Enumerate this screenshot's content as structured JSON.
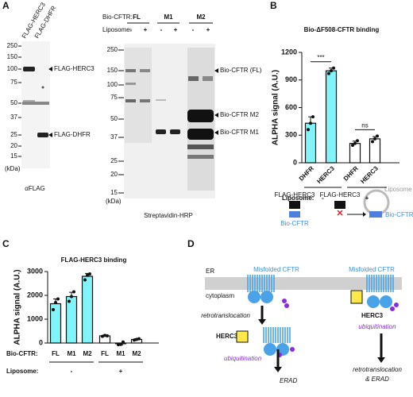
{
  "panel_labels": [
    "A",
    "B",
    "C",
    "D"
  ],
  "blot_left": {
    "lanes": [
      "FLAG-HERC3",
      "FLAG-DHFR"
    ],
    "markers": [
      250,
      150,
      100,
      75,
      50,
      37,
      25,
      20,
      15
    ],
    "marker_unit": "(kDa)",
    "bands": [
      "FLAG-HERC3",
      "FLAG-DHFR"
    ],
    "caption": "αFLAG"
  },
  "blot_right": {
    "row1_label": "Bio-CFTR:",
    "constructs": [
      "FL",
      "M1",
      "M2"
    ],
    "row2_label": "Liposome:",
    "liposome": [
      "-",
      "+",
      "-",
      "+",
      "-",
      "+"
    ],
    "markers": [
      250,
      150,
      100,
      75,
      50,
      37,
      25,
      20,
      15
    ],
    "marker_unit": "(kDa)",
    "bands": [
      "Bio-CFTR (FL)",
      "Bio-CFTR M2",
      "Bio-CFTR M1"
    ],
    "caption": "Streptavidin-HRP"
  },
  "chart_data": [
    {
      "type": "bar",
      "title": "Bio-ΔF508-CFTR binding",
      "y_label": "ALPHA signal (A.U.)",
      "categories": [
        "DHFR",
        "HERC3",
        "DHFR",
        "HERC3"
      ],
      "values": [
        430,
        1000,
        210,
        260
      ],
      "errors": [
        70,
        30,
        25,
        25
      ],
      "points": [
        [
          360,
          430,
          500
        ],
        [
          970,
          1000,
          1030
        ],
        [
          190,
          210,
          240
        ],
        [
          230,
          260,
          290
        ]
      ],
      "colors": [
        "#80f4f8",
        "#80f4f8",
        "#ffffff",
        "#ffffff"
      ],
      "ylim": [
        0,
        1200
      ],
      "yticks": [
        0,
        300,
        600,
        900,
        1200
      ],
      "group_label": "Liposome:",
      "groups": [
        "-",
        "+"
      ],
      "annotations": [
        "***",
        "ns"
      ]
    },
    {
      "type": "bar",
      "title": "FLAG-HERC3 binding",
      "y_label": "ALPHA signal (A.U.)",
      "row_label": "Bio-CFTR:",
      "categories": [
        "FL",
        "M1",
        "M2",
        "FL",
        "M1",
        "M2"
      ],
      "values": [
        1650,
        1950,
        2800,
        300,
        -30,
        150
      ],
      "errors": [
        200,
        180,
        120,
        30,
        50,
        30
      ],
      "points": [
        [
          1400,
          1700,
          1850
        ],
        [
          1750,
          1950,
          2150
        ],
        [
          2650,
          2850,
          2900
        ],
        [
          280,
          320,
          300
        ],
        [
          -70,
          -60,
          40
        ],
        [
          120,
          150,
          180
        ]
      ],
      "colors": [
        "#80f4f8",
        "#80f4f8",
        "#80f4f8",
        "#ffffff",
        "#ffffff",
        "#ffffff"
      ],
      "ylim": [
        0,
        3000
      ],
      "yticks": [
        0,
        1000,
        2000,
        3000
      ],
      "group_label": "Liposome:",
      "groups": [
        "-",
        "+"
      ]
    }
  ],
  "schematic_b": {
    "labels": [
      "FLAG-HERC3",
      "Bio-CFTR",
      "FLAG-HERC3",
      "Liposome",
      "Bio-CFTR"
    ]
  },
  "diagram_d": {
    "compartments": [
      "ER",
      "cytoplasm"
    ],
    "substrate": [
      "Misfolded CFTR",
      "Misfolded CFTR"
    ],
    "left_steps": [
      "retrotranslocation",
      "HERC3",
      "ubiquitination",
      "ERAD"
    ],
    "right_steps": [
      "HERC3",
      "ubiquitination",
      "retrotranslocation",
      "& ERAD"
    ]
  }
}
